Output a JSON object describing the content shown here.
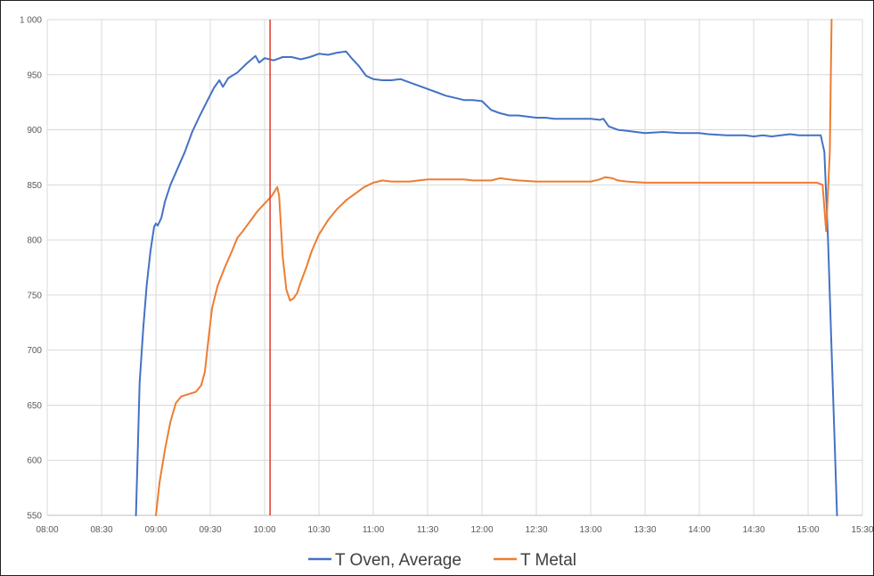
{
  "chart_data": {
    "type": "line",
    "title": "",
    "xlabel": "",
    "ylabel": "",
    "ylim": [
      550,
      1000
    ],
    "yticks": [
      550,
      600,
      650,
      700,
      750,
      800,
      850,
      900,
      950,
      1000
    ],
    "ytick_labels": [
      "550",
      "600",
      "650",
      "700",
      "750",
      "800",
      "850",
      "900",
      "950",
      "1 000"
    ],
    "xlim": [
      "08:00",
      "15:30"
    ],
    "xtick_labels": [
      "08:00",
      "08:30",
      "09:00",
      "09:30",
      "10:00",
      "10:30",
      "11:00",
      "11:30",
      "12:00",
      "12:30",
      "13:00",
      "13:30",
      "14:00",
      "14:30",
      "15:00",
      "15:30"
    ],
    "grid": true,
    "legend_position": "bottom",
    "marker_line": {
      "x": "10:03",
      "color": "#e0392b"
    },
    "series": [
      {
        "name": "T Oven, Average",
        "color": "#4472c4",
        "points": [
          [
            "08:49",
            550
          ],
          [
            "08:50",
            610
          ],
          [
            "08:51",
            670
          ],
          [
            "08:53",
            720
          ],
          [
            "08:55",
            760
          ],
          [
            "08:57",
            790
          ],
          [
            "08:59",
            812
          ],
          [
            "09:00",
            815
          ],
          [
            "09:01",
            813
          ],
          [
            "09:03",
            820
          ],
          [
            "09:05",
            835
          ],
          [
            "09:08",
            850
          ],
          [
            "09:12",
            865
          ],
          [
            "09:16",
            880
          ],
          [
            "09:20",
            898
          ],
          [
            "09:24",
            912
          ],
          [
            "09:28",
            925
          ],
          [
            "09:32",
            938
          ],
          [
            "09:35",
            945
          ],
          [
            "09:37",
            939
          ],
          [
            "09:40",
            947
          ],
          [
            "09:45",
            952
          ],
          [
            "09:50",
            960
          ],
          [
            "09:55",
            967
          ],
          [
            "09:57",
            961
          ],
          [
            "10:00",
            965
          ],
          [
            "10:05",
            963
          ],
          [
            "10:10",
            966
          ],
          [
            "10:15",
            966
          ],
          [
            "10:20",
            964
          ],
          [
            "10:25",
            966
          ],
          [
            "10:30",
            969
          ],
          [
            "10:35",
            968
          ],
          [
            "10:40",
            970
          ],
          [
            "10:45",
            971
          ],
          [
            "10:48",
            965
          ],
          [
            "10:52",
            958
          ],
          [
            "10:56",
            949
          ],
          [
            "11:00",
            946
          ],
          [
            "11:05",
            945
          ],
          [
            "11:10",
            945
          ],
          [
            "11:15",
            946
          ],
          [
            "11:20",
            943
          ],
          [
            "11:25",
            940
          ],
          [
            "11:30",
            937
          ],
          [
            "11:35",
            934
          ],
          [
            "11:40",
            931
          ],
          [
            "11:45",
            929
          ],
          [
            "11:50",
            927
          ],
          [
            "11:55",
            927
          ],
          [
            "12:00",
            926
          ],
          [
            "12:05",
            918
          ],
          [
            "12:10",
            915
          ],
          [
            "12:15",
            913
          ],
          [
            "12:20",
            913
          ],
          [
            "12:25",
            912
          ],
          [
            "12:30",
            911
          ],
          [
            "12:35",
            911
          ],
          [
            "12:40",
            910
          ],
          [
            "12:50",
            910
          ],
          [
            "13:00",
            910
          ],
          [
            "13:05",
            909
          ],
          [
            "13:07",
            910
          ],
          [
            "13:10",
            903
          ],
          [
            "13:15",
            900
          ],
          [
            "13:20",
            899
          ],
          [
            "13:25",
            898
          ],
          [
            "13:30",
            897
          ],
          [
            "13:40",
            898
          ],
          [
            "13:50",
            897
          ],
          [
            "14:00",
            897
          ],
          [
            "14:05",
            896
          ],
          [
            "14:15",
            895
          ],
          [
            "14:25",
            895
          ],
          [
            "14:30",
            894
          ],
          [
            "14:35",
            895
          ],
          [
            "14:40",
            894
          ],
          [
            "14:45",
            895
          ],
          [
            "14:50",
            896
          ],
          [
            "14:55",
            895
          ],
          [
            "15:00",
            895
          ],
          [
            "15:05",
            895
          ],
          [
            "15:07",
            895
          ],
          [
            "15:09",
            880
          ],
          [
            "15:11",
            800
          ],
          [
            "15:13",
            700
          ],
          [
            "15:15",
            600
          ],
          [
            "15:16",
            550
          ]
        ]
      },
      {
        "name": "T Metal",
        "color": "#ed7d31",
        "points": [
          [
            "09:00",
            550
          ],
          [
            "09:02",
            580
          ],
          [
            "09:05",
            610
          ],
          [
            "09:08",
            635
          ],
          [
            "09:11",
            652
          ],
          [
            "09:14",
            658
          ],
          [
            "09:18",
            660
          ],
          [
            "09:22",
            662
          ],
          [
            "09:25",
            668
          ],
          [
            "09:27",
            680
          ],
          [
            "09:29",
            710
          ],
          [
            "09:31",
            738
          ],
          [
            "09:34",
            758
          ],
          [
            "09:38",
            775
          ],
          [
            "09:42",
            790
          ],
          [
            "09:45",
            802
          ],
          [
            "09:48",
            808
          ],
          [
            "09:52",
            817
          ],
          [
            "09:56",
            826
          ],
          [
            "10:00",
            833
          ],
          [
            "10:04",
            840
          ],
          [
            "10:07",
            848
          ],
          [
            "10:08",
            840
          ],
          [
            "10:10",
            785
          ],
          [
            "10:12",
            755
          ],
          [
            "10:14",
            745
          ],
          [
            "10:16",
            747
          ],
          [
            "10:18",
            752
          ],
          [
            "10:20",
            762
          ],
          [
            "10:23",
            775
          ],
          [
            "10:26",
            790
          ],
          [
            "10:30",
            805
          ],
          [
            "10:35",
            818
          ],
          [
            "10:40",
            828
          ],
          [
            "10:45",
            836
          ],
          [
            "10:50",
            842
          ],
          [
            "10:55",
            848
          ],
          [
            "11:00",
            852
          ],
          [
            "11:05",
            854
          ],
          [
            "11:10",
            853
          ],
          [
            "11:20",
            853
          ],
          [
            "11:25",
            854
          ],
          [
            "11:30",
            855
          ],
          [
            "11:40",
            855
          ],
          [
            "11:50",
            855
          ],
          [
            "11:55",
            854
          ],
          [
            "12:05",
            854
          ],
          [
            "12:10",
            856
          ],
          [
            "12:15",
            855
          ],
          [
            "12:20",
            854
          ],
          [
            "12:30",
            853
          ],
          [
            "12:40",
            853
          ],
          [
            "12:50",
            853
          ],
          [
            "13:00",
            853
          ],
          [
            "13:05",
            855
          ],
          [
            "13:08",
            857
          ],
          [
            "13:12",
            856
          ],
          [
            "13:15",
            854
          ],
          [
            "13:20",
            853
          ],
          [
            "13:30",
            852
          ],
          [
            "13:45",
            852
          ],
          [
            "14:00",
            852
          ],
          [
            "14:15",
            852
          ],
          [
            "14:30",
            852
          ],
          [
            "14:45",
            852
          ],
          [
            "15:00",
            852
          ],
          [
            "15:05",
            852
          ],
          [
            "15:08",
            850
          ],
          [
            "15:10",
            808
          ],
          [
            "15:12",
            880
          ],
          [
            "15:13",
            1000
          ]
        ]
      }
    ]
  }
}
